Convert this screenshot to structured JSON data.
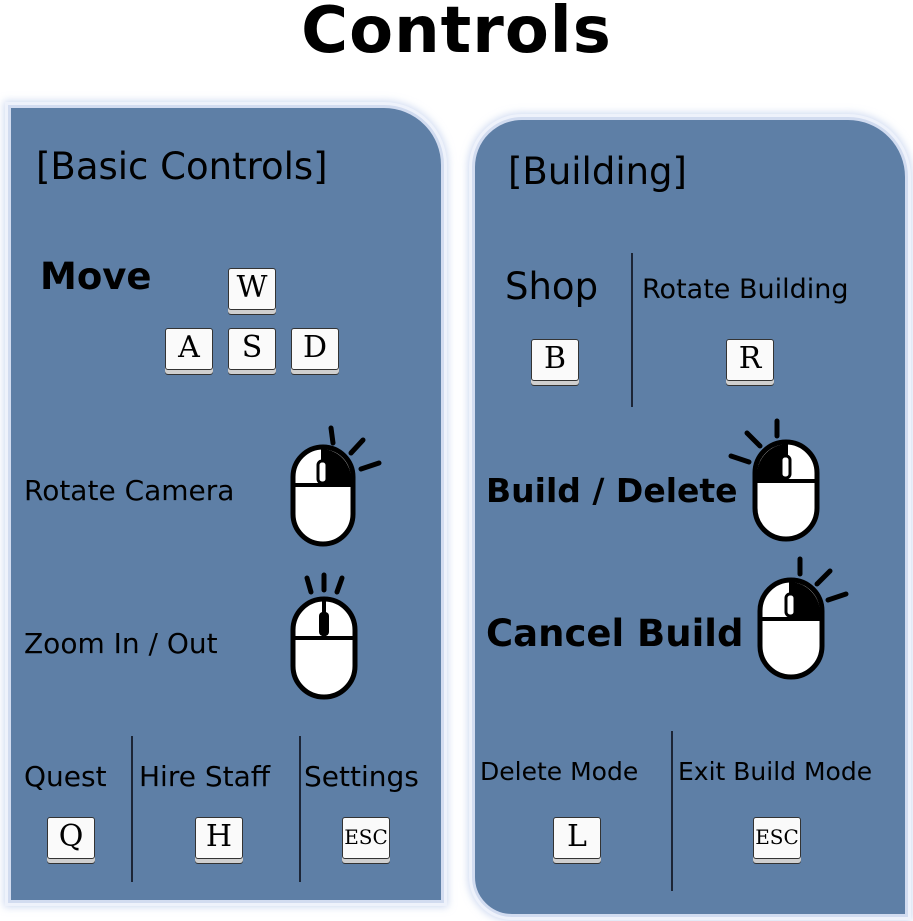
{
  "title": "Controls",
  "basic": {
    "heading": "[Basic Controls]",
    "move_label": "Move",
    "move_keys": [
      "W",
      "A",
      "S",
      "D"
    ],
    "rotate_camera_label": "Rotate Camera",
    "rotate_camera_icon": "mouse-right-click-icon",
    "zoom_label": "Zoom In / Out",
    "zoom_icon": "mouse-scroll-wheel-icon",
    "shortcuts": [
      {
        "label": "Quest",
        "key": "Q"
      },
      {
        "label": "Hire Staff",
        "key": "H"
      },
      {
        "label": "Settings",
        "key": "ESC"
      }
    ]
  },
  "building": {
    "heading": "[Building]",
    "shop_label": "Shop",
    "shop_key": "B",
    "rotate_label": "Rotate Building",
    "rotate_key": "R",
    "build_delete_label": "Build / Delete",
    "build_delete_icon": "mouse-left-click-icon",
    "cancel_label": "Cancel Build",
    "cancel_icon": "mouse-right-click-icon",
    "shortcuts": [
      {
        "label": "Delete Mode",
        "key": "L"
      },
      {
        "label": "Exit Build Mode",
        "key": "ESC"
      }
    ]
  },
  "colors": {
    "panel": "#5e7fa6",
    "panel_border": "#d2dcf0",
    "key_face": "#fafafa"
  }
}
